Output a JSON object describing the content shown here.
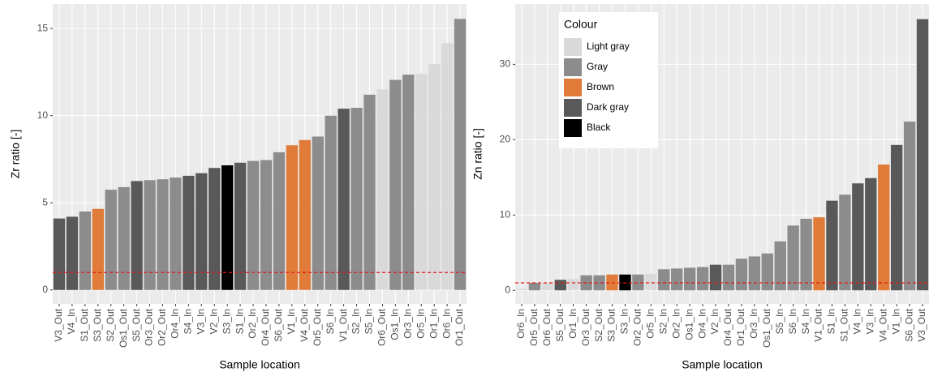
{
  "chart_data": [
    {
      "type": "bar",
      "x_label": "Sample location",
      "y_label": "Zr ratio [-]",
      "categories": [
        "V3_Out",
        "V4_In",
        "S1_Out",
        "S3_Out",
        "S2_Out",
        "Os1_Out",
        "S5_Out",
        "Or3_Out",
        "Or2_Out",
        "Or4_In",
        "S4_In",
        "V3_In",
        "V2_In",
        "S3_In",
        "S1_In",
        "Or2_In",
        "Or4_Out",
        "S6_Out",
        "V1_In",
        "V4_Out",
        "Or5_Out",
        "S6_In",
        "V1_Out",
        "S2_In",
        "S5_In",
        "Or6_Out",
        "Os1_In",
        "Or3_In",
        "Or5_In",
        "Or1_In",
        "Or6_In",
        "Or1_Out"
      ],
      "values": [
        4.1,
        4.2,
        4.5,
        4.65,
        5.75,
        5.9,
        6.25,
        6.3,
        6.35,
        6.45,
        6.55,
        6.7,
        7.0,
        7.15,
        7.3,
        7.4,
        7.45,
        7.9,
        8.3,
        8.6,
        8.8,
        10.0,
        10.4,
        10.45,
        11.2,
        11.5,
        12.05,
        12.35,
        12.4,
        12.95,
        14.15,
        15.55
      ],
      "colors": [
        "#595959",
        "#595959",
        "#8c8c8c",
        "#e07b39",
        "#8c8c8c",
        "#8c8c8c",
        "#595959",
        "#8c8c8c",
        "#8c8c8c",
        "#8c8c8c",
        "#595959",
        "#595959",
        "#595959",
        "#000000",
        "#595959",
        "#8c8c8c",
        "#8c8c8c",
        "#8c8c8c",
        "#e07b39",
        "#e07b39",
        "#8c8c8c",
        "#8c8c8c",
        "#595959",
        "#8c8c8c",
        "#8c8c8c",
        "#d9d9d9",
        "#8c8c8c",
        "#8c8c8c",
        "#d9d9d9",
        "#d9d9d9",
        "#d9d9d9",
        "#8c8c8c"
      ],
      "ylim": [
        -0.8,
        16.4
      ],
      "yticks": [
        0,
        5,
        10,
        15
      ],
      "grid": true,
      "hline": 1,
      "hline_color": "#e41a1c"
    },
    {
      "type": "bar",
      "x_label": "Sample location",
      "y_label": "Zn ratio [-]",
      "categories": [
        "Or6_In",
        "Or5_Out",
        "Or6_Out",
        "S5_Out",
        "Or1_In",
        "Or3_Out",
        "S2_Out",
        "S3_Out",
        "S3_In",
        "Or2_Out",
        "Or5_In",
        "S2_In",
        "Or2_In",
        "Os1_In",
        "Or4_In",
        "V2_In",
        "Or4_Out",
        "Or1_Out",
        "Or3_In",
        "Os1_Out",
        "S5_In",
        "S6_In",
        "S4_In",
        "V1_Out",
        "S1_In",
        "S1_Out",
        "V4_In",
        "V3_In",
        "V4_Out",
        "V1_In",
        "S6_Out",
        "V3_Out"
      ],
      "values": [
        0.2,
        1.0,
        1.0,
        1.4,
        1.5,
        2.0,
        2.0,
        2.1,
        2.1,
        2.1,
        2.2,
        2.8,
        2.9,
        3.0,
        3.1,
        3.4,
        3.4,
        4.2,
        4.5,
        4.9,
        6.5,
        8.6,
        9.5,
        9.7,
        11.9,
        12.7,
        14.2,
        14.9,
        16.7,
        19.3,
        22.4,
        36
      ],
      "colors": [
        "#d9d9d9",
        "#8c8c8c",
        "#d9d9d9",
        "#595959",
        "#d9d9d9",
        "#8c8c8c",
        "#8c8c8c",
        "#e07b39",
        "#000000",
        "#8c8c8c",
        "#d9d9d9",
        "#8c8c8c",
        "#8c8c8c",
        "#8c8c8c",
        "#8c8c8c",
        "#595959",
        "#8c8c8c",
        "#8c8c8c",
        "#8c8c8c",
        "#8c8c8c",
        "#8c8c8c",
        "#8c8c8c",
        "#8c8c8c",
        "#e07b39",
        "#595959",
        "#8c8c8c",
        "#595959",
        "#595959",
        "#e07b39",
        "#595959",
        "#8c8c8c",
        "#595959"
      ],
      "ylim": [
        -1.8,
        38
      ],
      "yticks": [
        0,
        10,
        20,
        30
      ],
      "grid": true,
      "hline": 1,
      "hline_color": "#e41a1c",
      "legend": {
        "title": "Colour",
        "position": "top-left",
        "entries": [
          {
            "name": "Light gray",
            "color": "#d9d9d9"
          },
          {
            "name": "Gray",
            "color": "#8c8c8c"
          },
          {
            "name": "Brown",
            "color": "#e07b39"
          },
          {
            "name": "Dark gray",
            "color": "#595959"
          },
          {
            "name": "Black",
            "color": "#000000"
          }
        ]
      }
    }
  ]
}
